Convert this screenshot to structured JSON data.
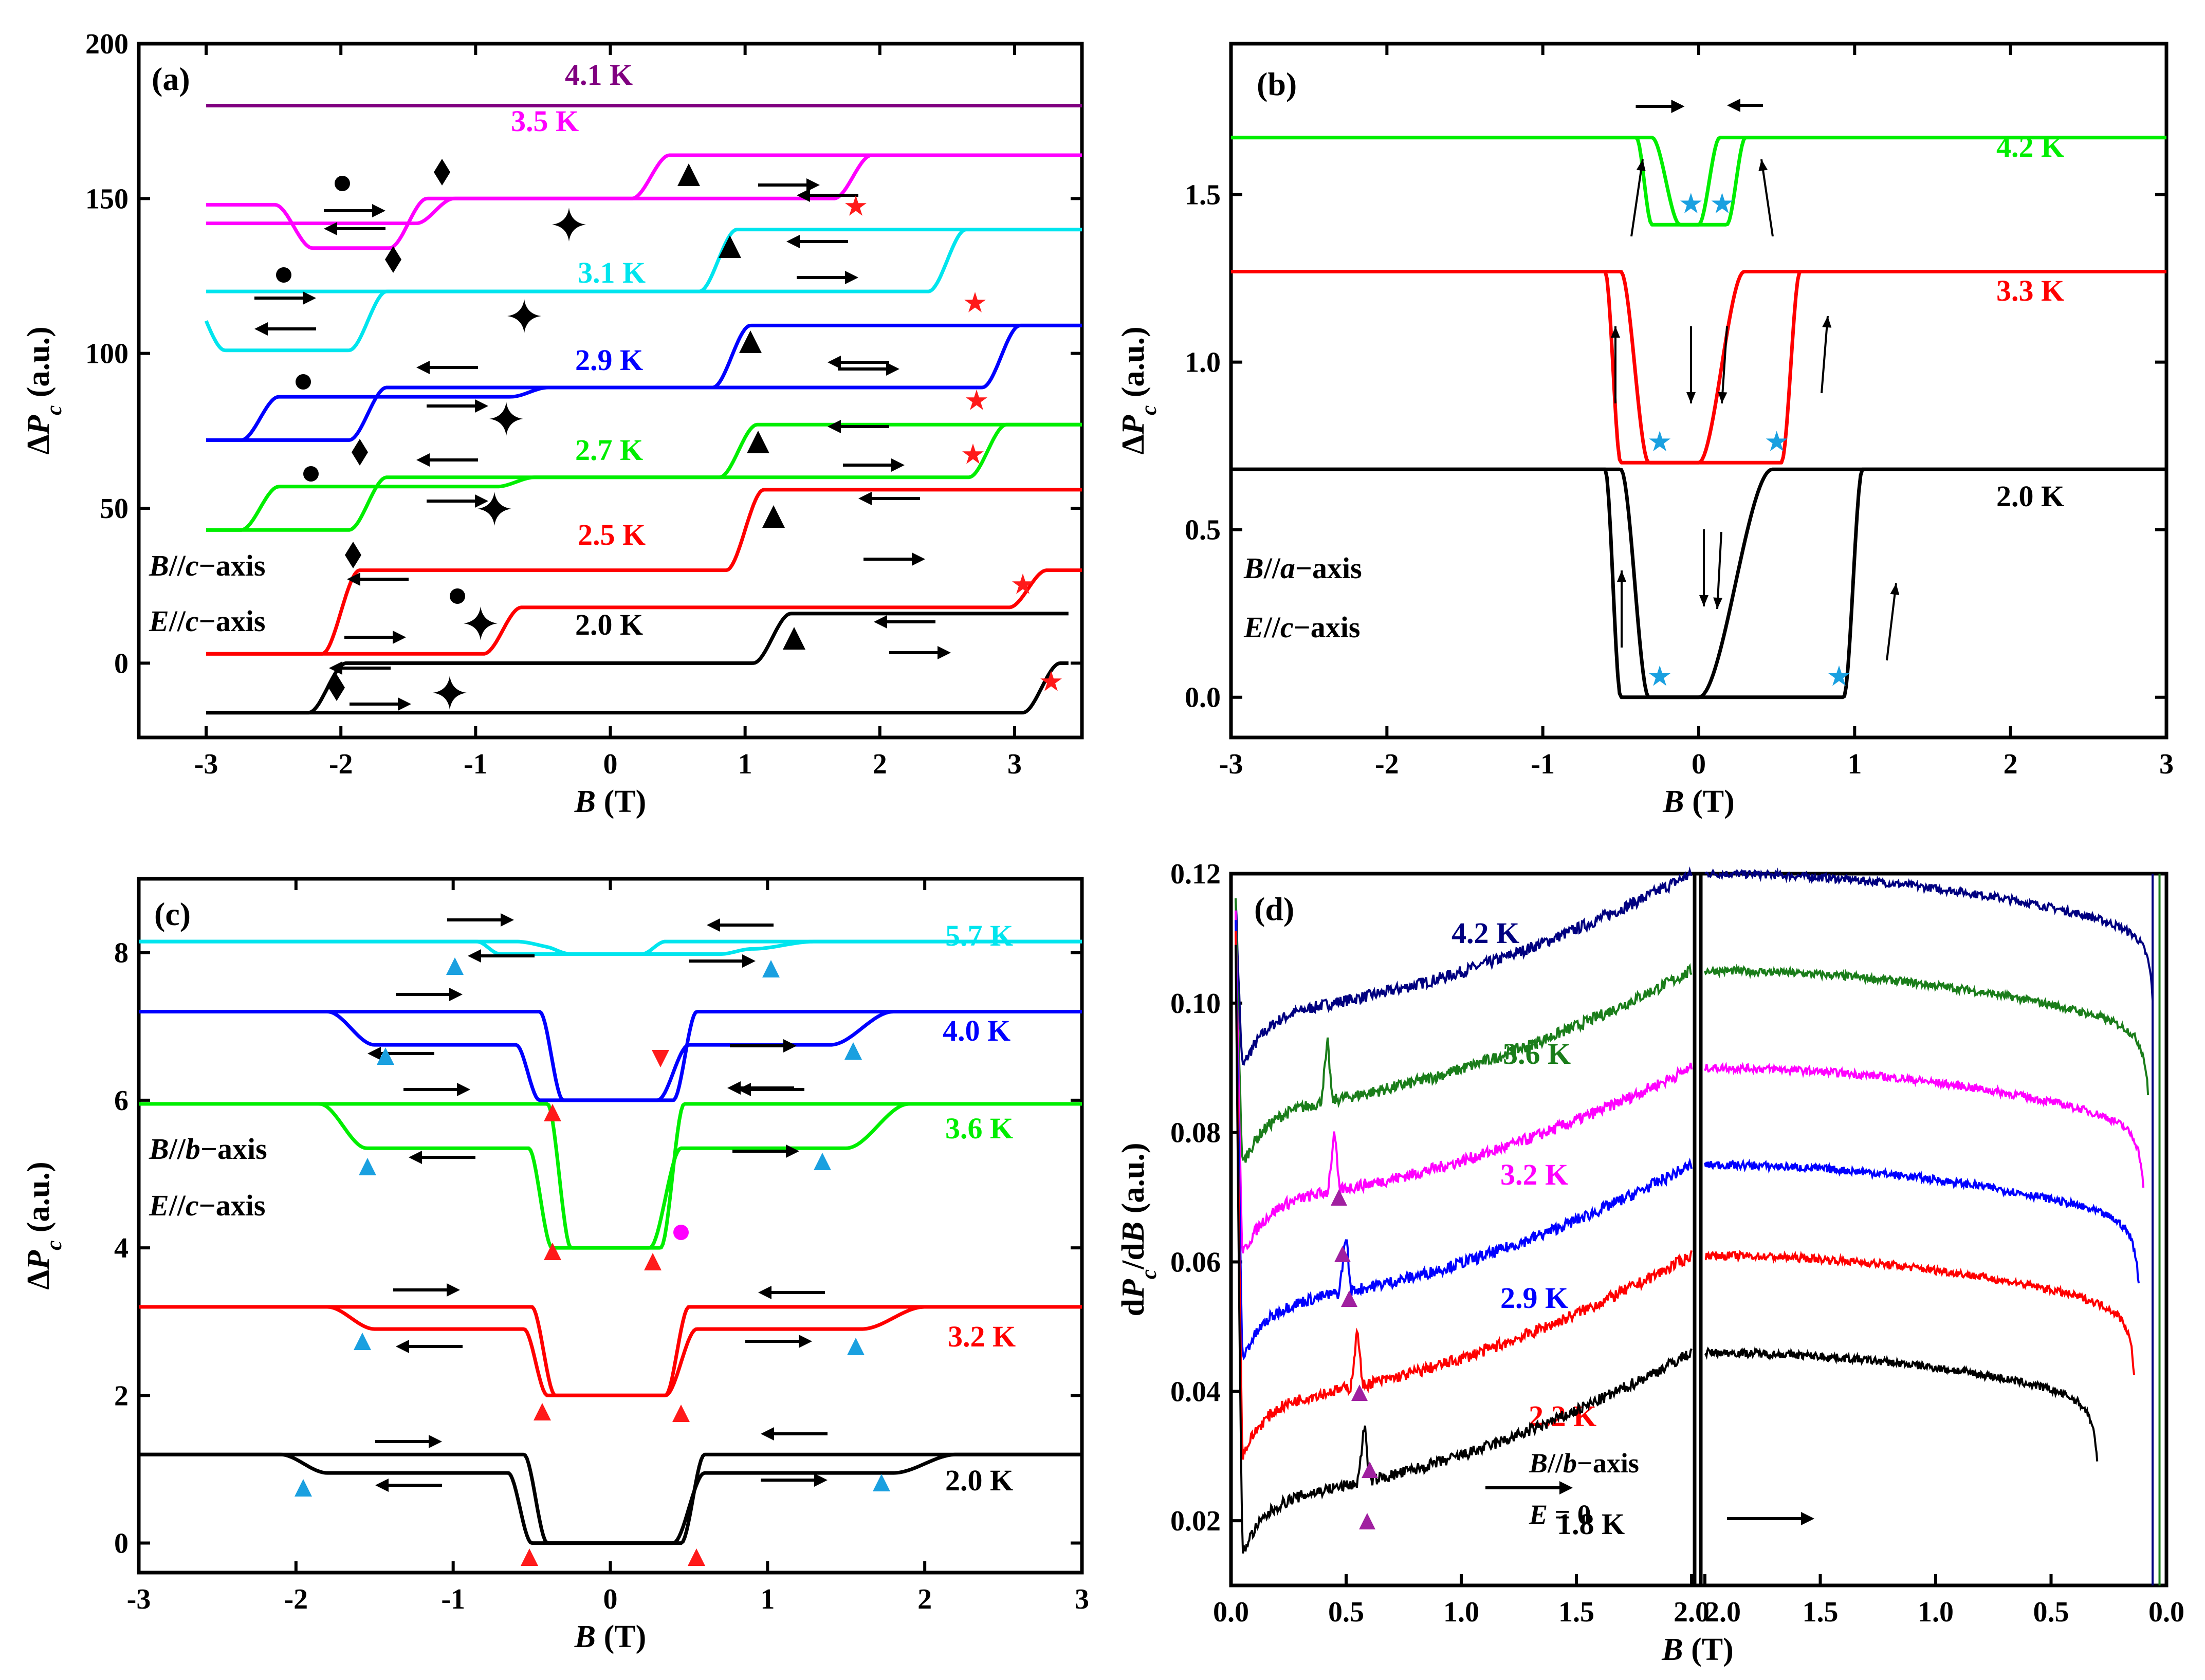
{
  "chart_data": [
    {
      "type": "line",
      "panel_label": "(a)",
      "xlabel": "B (T)",
      "ylabel": "ΔPc (a.u.)",
      "xlim": [
        -3.5,
        3.5
      ],
      "ylim": [
        -24,
        200
      ],
      "x_ticks": [
        -3,
        -2,
        -1,
        0,
        1,
        2,
        3
      ],
      "y_ticks": [
        0,
        50,
        100,
        150,
        200
      ],
      "annotations": [
        "B//c−axis",
        "E//c−axis"
      ],
      "series": [
        {
          "name": "4.1 K",
          "color": "#800080",
          "hysteresis": false,
          "base": 180,
          "x_range": [
            -3,
            3.5
          ]
        },
        {
          "name": "3.5 K",
          "color": "#ff00ff",
          "x_range": [
            -3,
            3.5
          ],
          "up_branch": {
            "levels": [
              148,
              134,
              150,
              164
            ],
            "transitions": [
              -2.35,
              -1.5,
              1.8
            ]
          },
          "down_branch": {
            "levels": [
              164,
              150,
              142
            ],
            "transitions": [
              0.3,
              -1.3
            ]
          }
        },
        {
          "name": "3.1 K",
          "color": "#00e5ee",
          "x_range": [
            -3,
            3.5
          ],
          "up_branch": {
            "levels": [
              120,
              120,
              140
            ],
            "transitions": [
              -1.5,
              2.5
            ]
          },
          "down_branch": {
            "levels": [
              140,
              120,
              101,
              120
            ],
            "transitions": [
              0.8,
              -1.8,
              -3.0
            ]
          }
        },
        {
          "name": "2.9 K",
          "color": "#0000ff",
          "x_range": [
            -3,
            3.5
          ],
          "up_branch": {
            "levels": [
              72,
              86,
              89,
              109
            ],
            "transitions": [
              -2.6,
              -0.6,
              2.9
            ]
          },
          "down_branch": {
            "levels": [
              109,
              89,
              72
            ],
            "transitions": [
              0.9,
              -1.8
            ]
          }
        },
        {
          "name": "2.7 K",
          "color": "#00ee00",
          "x_range": [
            -3,
            3.5
          ],
          "up_branch": {
            "levels": [
              43,
              57,
              60,
              77
            ],
            "transitions": [
              -2.6,
              -0.7,
              2.8
            ]
          },
          "down_branch": {
            "levels": [
              77,
              60,
              43
            ],
            "transitions": [
              0.95,
              -1.8
            ]
          }
        },
        {
          "name": "2.5 K",
          "color": "#ff0000",
          "x_range": [
            -3,
            3.5
          ],
          "up_branch": {
            "levels": [
              3,
              3,
              18,
              30,
              56
            ],
            "transitions": [
              -1.5,
              -0.8,
              3.1
            ]
          },
          "down_branch": {
            "levels": [
              56,
              30,
              3
            ],
            "transitions": [
              1.0,
              -2.0
            ]
          }
        },
        {
          "name": "2.0 K",
          "color": "#000000",
          "x_range": [
            -3,
            3.4
          ],
          "up_branch": {
            "levels": [
              -16,
              -16,
              0,
              16
            ],
            "transitions": [
              -1.1,
              3.2
            ]
          },
          "down_branch": {
            "levels": [
              16,
              0,
              -16
            ],
            "transitions": [
              1.2,
              -2.1
            ]
          }
        }
      ]
    },
    {
      "type": "line",
      "panel_label": "(b)",
      "xlabel": "B (T)",
      "ylabel": "ΔPc (a.u.)",
      "xlim": [
        -3,
        3
      ],
      "ylim": [
        -0.12,
        1.95
      ],
      "x_ticks": [
        -3,
        -2,
        -1,
        0,
        1,
        2,
        3
      ],
      "y_ticks": [
        0.0,
        0.5,
        1.0,
        1.5
      ],
      "annotations": [
        "B//a−axis",
        "E//c−axis"
      ],
      "series": [
        {
          "name": "4.2 K",
          "color": "#00ee00",
          "high": 1.67,
          "low": 1.41,
          "up_transition": 0.3,
          "down_transition": -0.3
        },
        {
          "name": "3.3 K",
          "color": "#ff0000",
          "high": 1.27,
          "low": 0.7,
          "up_transition": 0.65,
          "down_transition": -0.5
        },
        {
          "name": "2.0 K",
          "color": "#000000",
          "high": 0.68,
          "low": 0.0,
          "up_transition": 1.05,
          "down_transition": -0.5
        }
      ]
    },
    {
      "type": "line",
      "panel_label": "(c)",
      "xlabel": "B (T)",
      "ylabel": "ΔPc (a.u.)",
      "xlim": [
        -3,
        3
      ],
      "ylim": [
        -0.4,
        9.0
      ],
      "x_ticks": [
        -3,
        -2,
        -1,
        0,
        1,
        2,
        3
      ],
      "y_ticks": [
        0,
        2,
        4,
        6,
        8
      ],
      "annotations": [
        "B//b−axis",
        "E//c−axis"
      ],
      "series": [
        {
          "name": "5.7 K",
          "color": "#00e5ee",
          "high": 8.15,
          "mid": 8.05,
          "low": 7.98
        },
        {
          "name": "4.0 K",
          "color": "#0000ff",
          "high": 7.2,
          "mid": 6.75,
          "low": 6.0
        },
        {
          "name": "3.6 K",
          "color": "#00ee00",
          "high": 5.95,
          "mid": 5.35,
          "low": 4.0
        },
        {
          "name": "3.2 K",
          "color": "#ff0000",
          "high": 3.2,
          "mid": 2.9,
          "low": 2.0
        },
        {
          "name": "2.0 K",
          "color": "#000000",
          "high": 1.2,
          "mid": 0.95,
          "low": 0.0
        }
      ]
    },
    {
      "type": "line",
      "panel_label": "(d)",
      "xlabel": "B (T)",
      "ylabel": "dPc/dB (a.u.)",
      "xlim_left": [
        0,
        2
      ],
      "xlim_right": [
        2,
        0
      ],
      "ylim": [
        0.01,
        0.12
      ],
      "x_ticks_left": [
        "0.0",
        "0.5",
        "1.0",
        "1.5",
        "2.0"
      ],
      "x_ticks_right": [
        "2.0",
        "1.5",
        "1.0",
        "0.5",
        "0.0"
      ],
      "y_ticks": [
        "0.02",
        "0.04",
        "0.06",
        "0.08",
        "0.10",
        "0.12"
      ],
      "annotations": [
        "B//b−axis",
        "E = 0"
      ],
      "series": [
        {
          "name": "4.2 K",
          "color": "#000080",
          "min_value": 0.09,
          "end_value": 0.12
        },
        {
          "name": "3.6 K",
          "color": "#1a7d1a",
          "min_value": 0.075,
          "end_value": 0.105
        },
        {
          "name": "3.2 K",
          "color": "#ff00ff",
          "min_value": 0.061,
          "end_value": 0.09
        },
        {
          "name": "2.9 K",
          "color": "#0000ff",
          "min_value": 0.045,
          "end_value": 0.075
        },
        {
          "name": "2.2 K",
          "color": "#ff0000",
          "min_value": 0.03,
          "end_value": 0.061
        },
        {
          "name": "1.8 K",
          "color": "#000000",
          "min_value": 0.015,
          "end_value": 0.046
        }
      ]
    }
  ]
}
